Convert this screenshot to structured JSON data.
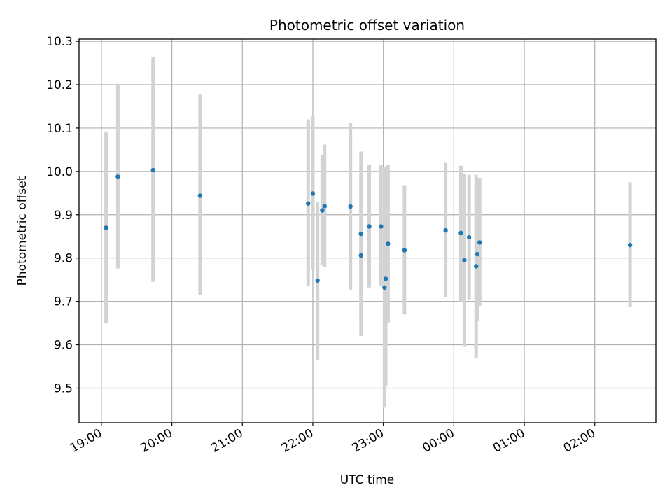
{
  "chart_data": {
    "type": "scatter",
    "title": "Photometric offset variation",
    "xlabel": "UTC time",
    "ylabel": "Photometric offset",
    "x_axis_kind": "time",
    "xlim": [
      "18:41",
      "02:52 (+1 day)"
    ],
    "ylim": [
      9.42,
      10.305
    ],
    "grid": true,
    "x_ticks": [
      "19:00",
      "20:00",
      "21:00",
      "22:00",
      "23:00",
      "00:00",
      "01:00",
      "02:00"
    ],
    "y_ticks": [
      "9.5",
      "9.6",
      "9.7",
      "9.8",
      "9.9",
      "10.0",
      "10.1",
      "10.2",
      "10.3"
    ],
    "series": [
      {
        "marker_color": "#1f77b4",
        "errorbar_color": "#d3d3d3",
        "points": [
          {
            "t": "19:04",
            "y": 9.87,
            "lo": 9.65,
            "hi": 10.092
          },
          {
            "t": "19:14",
            "y": 9.988,
            "lo": 9.776,
            "hi": 10.202
          },
          {
            "t": "19:44",
            "y": 10.003,
            "lo": 9.745,
            "hi": 10.263
          },
          {
            "t": "20:24",
            "y": 9.944,
            "lo": 9.715,
            "hi": 10.177
          },
          {
            "t": "21:56",
            "y": 9.926,
            "lo": 9.735,
            "hi": 10.12
          },
          {
            "t": "22:00",
            "y": 9.949,
            "lo": 9.773,
            "hi": 10.127
          },
          {
            "t": "22:04",
            "y": 9.748,
            "lo": 9.565,
            "hi": 9.93
          },
          {
            "t": "22:08",
            "y": 9.91,
            "lo": 9.783,
            "hi": 10.038
          },
          {
            "t": "22:10",
            "y": 9.92,
            "lo": 9.78,
            "hi": 10.062
          },
          {
            "t": "22:32",
            "y": 9.919,
            "lo": 9.727,
            "hi": 10.113
          },
          {
            "t": "22:41",
            "y": 9.856,
            "lo": 9.666,
            "hi": 10.046
          },
          {
            "t": "22:41",
            "y": 9.806,
            "lo": 9.62,
            "hi": 9.995
          },
          {
            "t": "22:48",
            "y": 9.873,
            "lo": 9.732,
            "hi": 10.015
          },
          {
            "t": "22:58",
            "y": 9.873,
            "lo": 9.735,
            "hi": 10.015
          },
          {
            "t": "23:01",
            "y": 9.732,
            "lo": 9.455,
            "hi": 10.01
          },
          {
            "t": "23:02",
            "y": 9.752,
            "lo": 9.505,
            "hi": 10.0
          },
          {
            "t": "23:04",
            "y": 9.833,
            "lo": 9.65,
            "hi": 10.015
          },
          {
            "t": "23:18",
            "y": 9.818,
            "lo": 9.67,
            "hi": 9.968
          },
          {
            "t": "23:53",
            "y": 9.864,
            "lo": 9.71,
            "hi": 10.02
          },
          {
            "t": "00:06",
            "y": 9.858,
            "lo": 9.7,
            "hi": 10.013
          },
          {
            "t": "00:09",
            "y": 9.795,
            "lo": 9.595,
            "hi": 9.995
          },
          {
            "t": "00:13",
            "y": 9.848,
            "lo": 9.703,
            "hi": 9.992
          },
          {
            "t": "00:19",
            "y": 9.781,
            "lo": 9.57,
            "hi": 9.992
          },
          {
            "t": "00:20",
            "y": 9.809,
            "lo": 9.655,
            "hi": 9.983
          },
          {
            "t": "00:22",
            "y": 9.836,
            "lo": 9.69,
            "hi": 9.985
          },
          {
            "t": "02:30",
            "y": 9.83,
            "lo": 9.687,
            "hi": 9.975
          }
        ]
      }
    ]
  }
}
